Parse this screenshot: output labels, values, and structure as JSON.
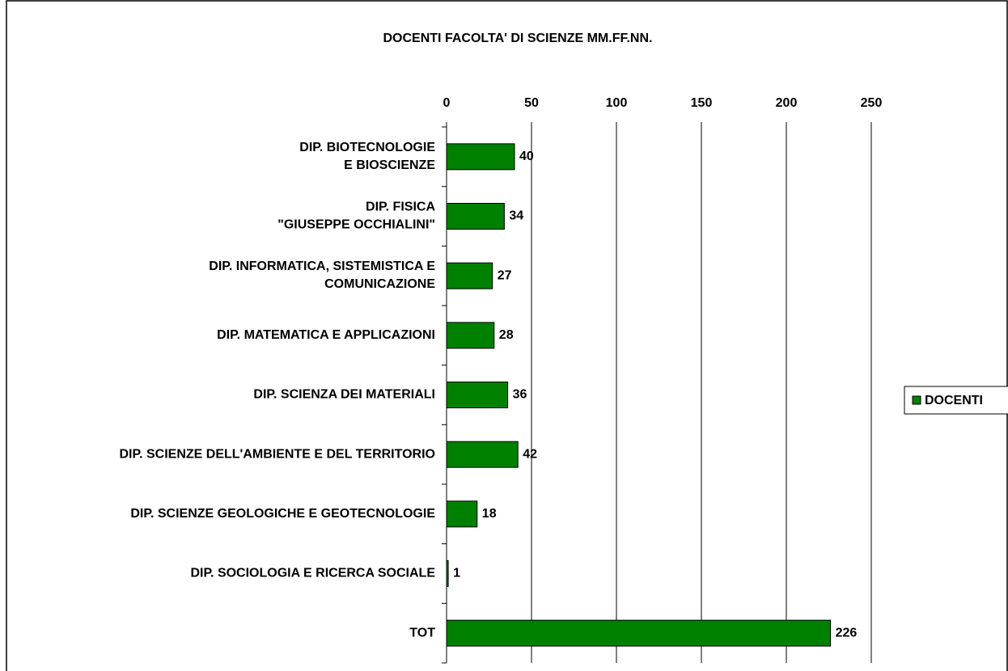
{
  "chart_data": {
    "type": "bar",
    "orientation": "horizontal",
    "title": "DOCENTI FACOLTA' DI SCIENZE MM.FF.NN.",
    "categories": [
      "DIP. BIOTECNOLOGIE\nE BIOSCIENZE",
      "DIP. FISICA\n\"GIUSEPPE OCCHIALINI\"",
      "DIP. INFORMATICA, SISTEMISTICA E\nCOMUNICAZIONE",
      "DIP. MATEMATICA E APPLICAZIONI",
      "DIP. SCIENZA DEI MATERIALI",
      "DIP. SCIENZE DELL'AMBIENTE E DEL TERRITORIO",
      "DIP. SCIENZE GEOLOGICHE E GEOTECNOLOGIE",
      "DIP. SOCIOLOGIA E RICERCA SOCIALE",
      "TOT"
    ],
    "series": [
      {
        "name": "DOCENTI",
        "color": "#008000",
        "values": [
          40,
          34,
          27,
          28,
          36,
          42,
          18,
          1,
          226
        ]
      }
    ],
    "xlim": [
      0,
      250
    ],
    "xticks": [
      0,
      50,
      100,
      150,
      200,
      250
    ],
    "grid": true,
    "legend": "right"
  }
}
